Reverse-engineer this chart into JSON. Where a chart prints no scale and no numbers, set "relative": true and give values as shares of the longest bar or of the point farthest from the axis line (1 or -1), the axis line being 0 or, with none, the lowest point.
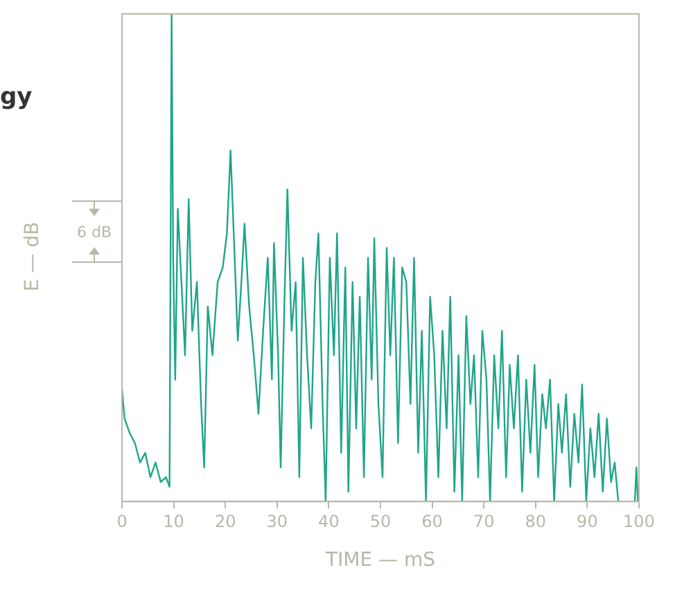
{
  "chart_data": {
    "type": "line",
    "relative": true,
    "xlabel": "TIME — mS",
    "ylabel": "E — dB",
    "annotations": [
      "gy",
      "6 dB"
    ],
    "xlim": [
      0,
      100
    ],
    "xticks": [
      0,
      10,
      20,
      30,
      40,
      50,
      60,
      70,
      80,
      90,
      100
    ],
    "grid": false,
    "legend": false,
    "marker": "none",
    "line_style": "solid",
    "series": [
      {
        "color": "#1fa58a",
        "x": [
          0,
          0.5,
          1.5,
          2.5,
          3.5,
          4.5,
          5.5,
          6.5,
          7.5,
          8.5,
          9.2,
          9.6,
          9.9,
          10.3,
          10.8,
          11.5,
          12.2,
          12.9,
          13.6,
          14.5,
          15.3,
          15.9,
          16.6,
          17.5,
          18.5,
          19.5,
          20.3,
          21.0,
          21.8,
          22.4,
          23.1,
          23.7,
          24.6,
          25.5,
          26.4,
          27.3,
          28.2,
          29.0,
          29.4,
          30.2,
          30.7,
          31.4,
          32.0,
          32.8,
          33.6,
          34.3,
          35.0,
          35.8,
          36.6,
          37.4,
          38.0,
          38.8,
          39.4,
          40.2,
          41.0,
          41.6,
          42.4,
          43.2,
          43.8,
          44.6,
          45.3,
          46.0,
          46.8,
          47.6,
          48.3,
          48.8,
          49.6,
          50.4,
          51.2,
          51.9,
          52.6,
          53.4,
          54.2,
          55.0,
          55.8,
          56.5,
          57.3,
          58.0,
          58.8,
          59.6,
          60.4,
          61.2,
          62.0,
          62.8,
          63.5,
          64.3,
          65.1,
          65.8,
          66.6,
          67.4,
          68.1,
          68.9,
          69.7,
          70.5,
          71.2,
          72.0,
          72.8,
          73.5,
          74.3,
          75.0,
          75.8,
          76.6,
          77.4,
          78.2,
          79.0,
          79.8,
          80.5,
          81.3,
          82.0,
          82.8,
          83.6,
          84.4,
          85.1,
          85.9,
          86.7,
          87.5,
          88.3,
          89.0,
          89.8,
          90.6,
          91.4,
          92.2,
          93.0,
          93.8,
          94.6,
          95.3,
          96.0,
          97.5,
          99.2,
          99.5,
          99.8
        ],
        "values": [
          0.23,
          0.17,
          0.14,
          0.12,
          0.08,
          0.1,
          0.05,
          0.08,
          0.04,
          0.05,
          0.03,
          1.0,
          0.5,
          0.25,
          0.6,
          0.45,
          0.3,
          0.62,
          0.35,
          0.45,
          0.2,
          0.07,
          0.4,
          0.3,
          0.45,
          0.48,
          0.55,
          0.72,
          0.5,
          0.33,
          0.45,
          0.57,
          0.4,
          0.3,
          0.18,
          0.35,
          0.5,
          0.25,
          0.53,
          0.3,
          0.07,
          0.4,
          0.64,
          0.35,
          0.45,
          0.05,
          0.5,
          0.3,
          0.15,
          0.45,
          0.55,
          0.2,
          0.0,
          0.5,
          0.3,
          0.55,
          0.1,
          0.48,
          0.02,
          0.45,
          0.15,
          0.42,
          0.05,
          0.5,
          0.25,
          0.54,
          0.2,
          0.05,
          0.52,
          0.3,
          0.5,
          0.12,
          0.48,
          0.45,
          0.2,
          0.5,
          0.1,
          0.35,
          0.0,
          0.42,
          0.3,
          0.05,
          0.35,
          0.15,
          0.42,
          0.02,
          0.3,
          0.0,
          0.38,
          0.2,
          0.3,
          0.05,
          0.35,
          0.25,
          0.0,
          0.3,
          0.15,
          0.35,
          0.05,
          0.28,
          0.15,
          0.3,
          0.02,
          0.25,
          0.1,
          0.28,
          0.05,
          0.22,
          0.15,
          0.25,
          0.0,
          0.2,
          0.1,
          0.22,
          0.03,
          0.18,
          0.08,
          0.24,
          0.0,
          0.15,
          0.05,
          0.18,
          0.02,
          0.17,
          0.04,
          0.08,
          0.0,
          null,
          0.0,
          0.07,
          0.0
        ]
      }
    ]
  }
}
